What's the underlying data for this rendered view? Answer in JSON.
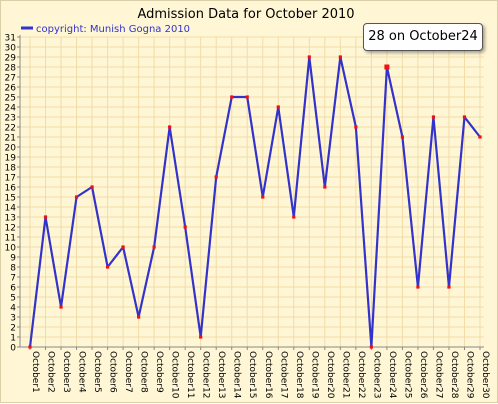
{
  "chart_data": {
    "type": "line",
    "title": "Admission Data for October 2010",
    "xlabel": "",
    "ylabel": "",
    "ylim": [
      0,
      31
    ],
    "grid": true,
    "legend": "top-left",
    "categories": [
      "October1",
      "October2",
      "October3",
      "October4",
      "October5",
      "October6",
      "October7",
      "October8",
      "October9",
      "October10",
      "October11",
      "October12",
      "October13",
      "October14",
      "October15",
      "October16",
      "October17",
      "October18",
      "October19",
      "October20",
      "October21",
      "October22",
      "October23",
      "October24",
      "October25",
      "October26",
      "October27",
      "October28",
      "October29",
      "October30"
    ],
    "yticks": [
      "0",
      "1",
      "2",
      "3",
      "4",
      "5",
      "6",
      "7",
      "8",
      "9",
      "10",
      "11",
      "12",
      "13",
      "14",
      "15",
      "16",
      "17",
      "18",
      "19",
      "20",
      "21",
      "22",
      "23",
      "24",
      "25",
      "26",
      "27",
      "28",
      "29",
      "30",
      "31"
    ],
    "series": [
      {
        "name": "copyright: Munish Gogna 2010",
        "values": [
          0,
          13,
          4,
          15,
          16,
          8,
          10,
          3,
          10,
          22,
          12,
          1,
          17,
          25,
          25,
          15,
          24,
          13,
          29,
          16,
          29,
          22,
          0,
          28,
          21,
          6,
          23,
          6,
          23,
          21
        ]
      }
    ],
    "tooltip": "28 on October24"
  },
  "colors": {
    "background": "#fff6d5",
    "grid": "#f2dca8",
    "line": "#3333cc",
    "marker": "#ee1111",
    "axis": "#888888"
  }
}
